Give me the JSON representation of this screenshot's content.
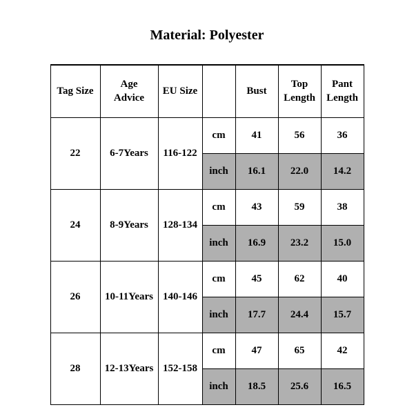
{
  "title": "Material: Polyester",
  "columns": {
    "tag": "Tag Size",
    "age": "Age Advice",
    "eu": "EU Size",
    "unit": "",
    "bust": "Bust",
    "top": "Top Length",
    "pant": "Pant Length"
  },
  "unit_cm": "cm",
  "unit_inch": "inch",
  "rows": [
    {
      "tag": "22",
      "age": "6-7Years",
      "eu": "116-122",
      "cm": {
        "bust": "41",
        "top": "56",
        "pant": "36"
      },
      "inch": {
        "bust": "16.1",
        "top": "22.0",
        "pant": "14.2"
      }
    },
    {
      "tag": "24",
      "age": "8-9Years",
      "eu": "128-134",
      "cm": {
        "bust": "43",
        "top": "59",
        "pant": "38"
      },
      "inch": {
        "bust": "16.9",
        "top": "23.2",
        "pant": "15.0"
      }
    },
    {
      "tag": "26",
      "age": "10-11Years",
      "eu": "140-146",
      "cm": {
        "bust": "45",
        "top": "62",
        "pant": "40"
      },
      "inch": {
        "bust": "17.7",
        "top": "24.4",
        "pant": "15.7"
      }
    },
    {
      "tag": "28",
      "age": "12-13Years",
      "eu": "152-158",
      "cm": {
        "bust": "47",
        "top": "65",
        "pant": "42"
      },
      "inch": {
        "bust": "18.5",
        "top": "25.6",
        "pant": "16.5"
      }
    }
  ],
  "styles": {
    "shaded_bg": "#b0b0b0",
    "border_color": "#000000",
    "font_family": "Times New Roman",
    "title_fontsize_pt": 20,
    "table_fontsize_pt": 15
  }
}
